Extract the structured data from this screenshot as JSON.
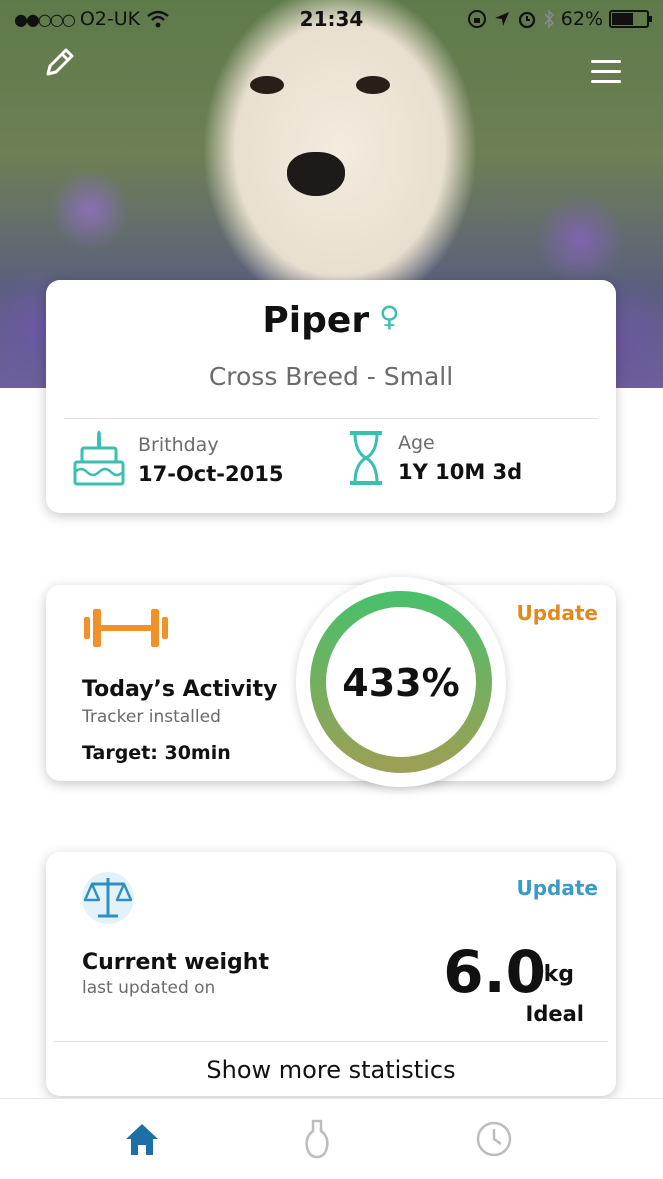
{
  "status_bar": {
    "carrier": "O2-UK",
    "time": "21:34",
    "battery_percent": "62%",
    "battery_level": 0.62
  },
  "hero": {
    "icons": [
      "pencil-icon",
      "hamburger-menu-icon"
    ]
  },
  "profile": {
    "name": "Piper",
    "gender_symbol": "♀",
    "breed": "Cross Breed - Small",
    "birthday_label": "Brithday",
    "birthday_value": "17-Oct-2015",
    "age_label": "Age",
    "age_value": "1Y 10M 3d"
  },
  "activity": {
    "title": "Today’s Activity",
    "subtitle": "Tracker installed",
    "target": "Target: 30min",
    "update_label": "Update",
    "progress_text": "433%",
    "progress_value": 433
  },
  "weight": {
    "title": "Current weight",
    "subtitle": "last updated on",
    "update_label": "Update",
    "value": "6.0",
    "unit": "kg",
    "status": "Ideal",
    "more_label": "Show more statistics"
  },
  "tabbar": {
    "tabs": [
      {
        "icon": "home-icon",
        "active": true
      },
      {
        "icon": "bulb-icon",
        "active": false
      },
      {
        "icon": "clock-icon",
        "active": false
      }
    ]
  },
  "colors": {
    "teal": "#3bbfb0",
    "orange": "#e08a1e",
    "blue": "#3a9bc7",
    "ring_start": "#4cbf6a",
    "ring_end": "#9aa056",
    "tab_active": "#1e6fa8",
    "tab_inactive": "#bdbdbd"
  }
}
